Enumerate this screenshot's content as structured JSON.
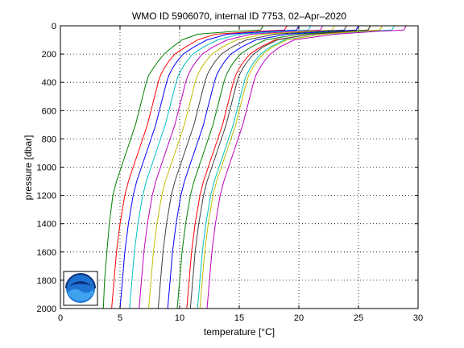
{
  "chart_data": {
    "type": "line",
    "title": "WMO ID 5906070, internal ID 7753, 02–Apr–2020",
    "xlabel": "temperature [°C]",
    "ylabel": "pressure [dbar]",
    "xlim": [
      0,
      30
    ],
    "ylim": [
      2000,
      0
    ],
    "y_reversed": true,
    "grid": true,
    "xticks": [
      0,
      5,
      10,
      15,
      20,
      25,
      30
    ],
    "yticks": [
      0,
      200,
      400,
      600,
      800,
      1000,
      1200,
      1400,
      1600,
      1800,
      2000
    ],
    "logo": "noaa-logo",
    "series": [
      {
        "color": "#008000",
        "pressure": [
          0,
          30,
          40,
          60,
          100,
          150,
          200,
          250,
          300,
          350,
          400,
          500,
          600,
          700,
          800,
          900,
          1000,
          1100,
          1200,
          1400,
          1600,
          1800,
          2000
        ],
        "temperature": [
          17.0,
          16.8,
          14.5,
          11.5,
          10.2,
          9.4,
          8.7,
          8.2,
          7.8,
          7.4,
          7.2,
          6.9,
          6.6,
          6.3,
          5.9,
          5.5,
          5.1,
          4.7,
          4.4,
          4.1,
          3.9,
          3.7,
          3.6
        ]
      },
      {
        "color": "#ff0000",
        "pressure": [
          0,
          30,
          40,
          60,
          100,
          150,
          200,
          250,
          300,
          350,
          400,
          500,
          600,
          700,
          800,
          900,
          1000,
          1100,
          1200,
          1400,
          1600,
          1800,
          2000
        ],
        "temperature": [
          19.0,
          18.8,
          16.5,
          13.0,
          11.5,
          10.5,
          9.6,
          9.1,
          8.7,
          8.4,
          8.2,
          7.9,
          7.6,
          7.3,
          6.9,
          6.5,
          6.1,
          5.7,
          5.4,
          5.0,
          4.7,
          4.5,
          4.3
        ]
      },
      {
        "color": "#0000ff",
        "pressure": [
          0,
          30,
          40,
          60,
          100,
          150,
          200,
          250,
          300,
          350,
          400,
          500,
          600,
          700,
          800,
          900,
          1000,
          1100,
          1200,
          1400,
          1600,
          1800,
          2000
        ],
        "temperature": [
          20.0,
          19.8,
          17.5,
          14.0,
          12.3,
          11.2,
          10.3,
          9.8,
          9.4,
          9.1,
          8.9,
          8.6,
          8.3,
          8.0,
          7.6,
          7.2,
          6.8,
          6.4,
          6.1,
          5.7,
          5.4,
          5.2,
          5.0
        ]
      },
      {
        "color": "#00bfbf",
        "pressure": [
          0,
          30,
          40,
          60,
          100,
          150,
          200,
          250,
          300,
          350,
          400,
          500,
          600,
          700,
          800,
          900,
          1000,
          1100,
          1200,
          1400,
          1600,
          1800,
          2000
        ],
        "temperature": [
          21.0,
          20.8,
          18.5,
          15.0,
          13.2,
          12.0,
          11.1,
          10.6,
          10.2,
          9.9,
          9.7,
          9.4,
          9.1,
          8.8,
          8.4,
          8.0,
          7.6,
          7.2,
          6.9,
          6.5,
          6.2,
          6.0,
          5.8
        ]
      },
      {
        "color": "#bf00bf",
        "pressure": [
          0,
          30,
          40,
          60,
          100,
          150,
          200,
          250,
          300,
          350,
          400,
          500,
          600,
          700,
          800,
          900,
          1000,
          1100,
          1200,
          1400,
          1600,
          1800,
          2000
        ],
        "temperature": [
          22.0,
          21.8,
          19.5,
          16.0,
          14.0,
          12.8,
          11.9,
          11.4,
          11.0,
          10.7,
          10.5,
          10.2,
          9.9,
          9.6,
          9.2,
          8.8,
          8.4,
          8.0,
          7.7,
          7.3,
          7.0,
          6.8,
          6.6
        ]
      },
      {
        "color": "#bfbf00",
        "pressure": [
          0,
          30,
          40,
          60,
          100,
          150,
          200,
          250,
          300,
          350,
          400,
          500,
          600,
          700,
          800,
          900,
          1000,
          1100,
          1200,
          1400,
          1600,
          1800,
          2000
        ],
        "temperature": [
          23.0,
          22.8,
          20.5,
          17.0,
          14.8,
          13.6,
          12.7,
          12.2,
          11.8,
          11.5,
          11.3,
          11.0,
          10.7,
          10.4,
          10.0,
          9.6,
          9.2,
          8.8,
          8.5,
          8.1,
          7.8,
          7.6,
          7.4
        ]
      },
      {
        "color": "#404040",
        "pressure": [
          0,
          30,
          40,
          60,
          100,
          150,
          200,
          250,
          300,
          350,
          400,
          500,
          600,
          700,
          800,
          900,
          1000,
          1100,
          1200,
          1400,
          1600,
          1800,
          2000
        ],
        "temperature": [
          24.0,
          23.8,
          21.5,
          18.0,
          15.6,
          14.4,
          13.5,
          13.0,
          12.6,
          12.3,
          12.1,
          11.8,
          11.5,
          11.2,
          10.8,
          10.4,
          10.0,
          9.6,
          9.3,
          8.9,
          8.6,
          8.4,
          8.2
        ]
      },
      {
        "color": "#0000ff",
        "pressure": [
          0,
          30,
          40,
          60,
          100,
          150,
          200,
          250,
          300,
          350,
          400,
          500,
          600,
          700,
          800,
          900,
          1000,
          1100,
          1200,
          1400,
          1600,
          1800,
          2000
        ],
        "temperature": [
          25.0,
          24.8,
          22.5,
          19.0,
          16.4,
          15.2,
          14.3,
          13.8,
          13.4,
          13.1,
          12.9,
          12.6,
          12.3,
          12.0,
          11.6,
          11.2,
          10.8,
          10.4,
          10.1,
          9.7,
          9.4,
          9.2,
          9.0
        ]
      },
      {
        "color": "#008000",
        "pressure": [
          0,
          30,
          40,
          60,
          100,
          150,
          200,
          250,
          300,
          350,
          400,
          500,
          600,
          700,
          800,
          900,
          1000,
          1100,
          1200,
          1400,
          1600,
          1800,
          2000
        ],
        "temperature": [
          26.0,
          25.8,
          23.5,
          20.0,
          17.2,
          16.0,
          15.1,
          14.6,
          14.2,
          13.9,
          13.7,
          13.4,
          13.1,
          12.8,
          12.4,
          12.0,
          11.6,
          11.2,
          10.9,
          10.5,
          10.2,
          10.0,
          9.8
        ]
      },
      {
        "color": "#ff0000",
        "pressure": [
          0,
          30,
          40,
          60,
          100,
          150,
          200,
          250,
          300,
          350,
          400,
          500,
          600,
          700,
          800,
          900,
          1000,
          1100,
          1200,
          1400,
          1600,
          1800,
          2000
        ],
        "temperature": [
          27.0,
          26.8,
          24.5,
          21.0,
          18.0,
          16.8,
          15.9,
          15.4,
          15.0,
          14.7,
          14.5,
          14.2,
          13.9,
          13.6,
          13.2,
          12.8,
          12.4,
          12.0,
          11.7,
          11.3,
          11.0,
          10.8,
          10.6
        ]
      },
      {
        "color": "#00bfbf",
        "pressure": [
          0,
          30,
          40,
          60,
          100,
          150,
          200,
          250,
          300,
          350,
          400,
          500,
          600,
          700,
          800,
          900,
          1000,
          1100,
          1200,
          1400,
          1600,
          1800,
          2000
        ],
        "temperature": [
          28.0,
          27.8,
          25.5,
          22.0,
          18.8,
          17.6,
          16.8,
          16.3,
          15.9,
          15.6,
          15.4,
          15.1,
          14.8,
          14.5,
          14.1,
          13.7,
          13.3,
          12.9,
          12.6,
          12.2,
          11.9,
          11.7,
          11.5
        ]
      },
      {
        "color": "#bf00bf",
        "pressure": [
          0,
          30,
          40,
          60,
          100,
          150,
          200,
          250,
          300,
          350,
          400,
          500,
          600,
          700,
          800,
          900,
          1000,
          1100,
          1200,
          1400,
          1600,
          1800,
          2000
        ],
        "temperature": [
          29.0,
          28.8,
          26.5,
          23.0,
          19.6,
          18.4,
          17.6,
          17.1,
          16.7,
          16.4,
          16.2,
          15.9,
          15.6,
          15.3,
          14.9,
          14.5,
          14.1,
          13.7,
          13.4,
          13.0,
          12.7,
          12.5,
          12.3
        ]
      },
      {
        "color": "#bfbf00",
        "pressure": [
          0,
          30,
          40,
          60,
          100,
          150,
          200,
          250,
          300,
          350,
          400,
          500,
          600,
          700,
          800,
          900,
          1000,
          1100,
          1200,
          1400,
          1600,
          1800,
          2000
        ],
        "temperature": [
          27.0,
          26.8,
          25.0,
          22.0,
          19.0,
          17.8,
          17.0,
          16.5,
          16.1,
          15.8,
          15.6,
          15.3,
          15.0,
          14.7,
          14.3,
          13.9,
          13.5,
          13.1,
          12.8,
          12.4,
          12.1,
          11.9,
          11.7
        ]
      },
      {
        "color": "#404040",
        "pressure": [
          0,
          30,
          40,
          60,
          100,
          150,
          200,
          250,
          300,
          350,
          400,
          500,
          600,
          700,
          800,
          900,
          1000,
          1100,
          1200,
          1400,
          1600,
          1800,
          2000
        ],
        "temperature": [
          26.0,
          25.8,
          24.0,
          21.0,
          18.2,
          17.0,
          16.2,
          15.7,
          15.3,
          15.0,
          14.8,
          14.5,
          14.2,
          13.9,
          13.5,
          13.1,
          12.7,
          12.3,
          12.0,
          11.6,
          11.3,
          11.1,
          10.9
        ]
      }
    ]
  }
}
